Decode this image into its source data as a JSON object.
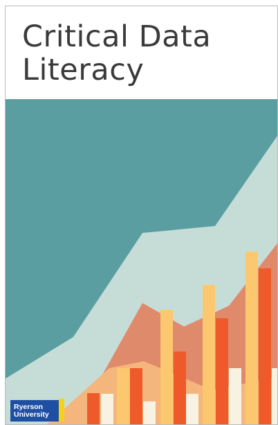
{
  "title": "Critical Data Literacy",
  "logo": {
    "lines": [
      "Ryerson",
      "University"
    ]
  }
}
